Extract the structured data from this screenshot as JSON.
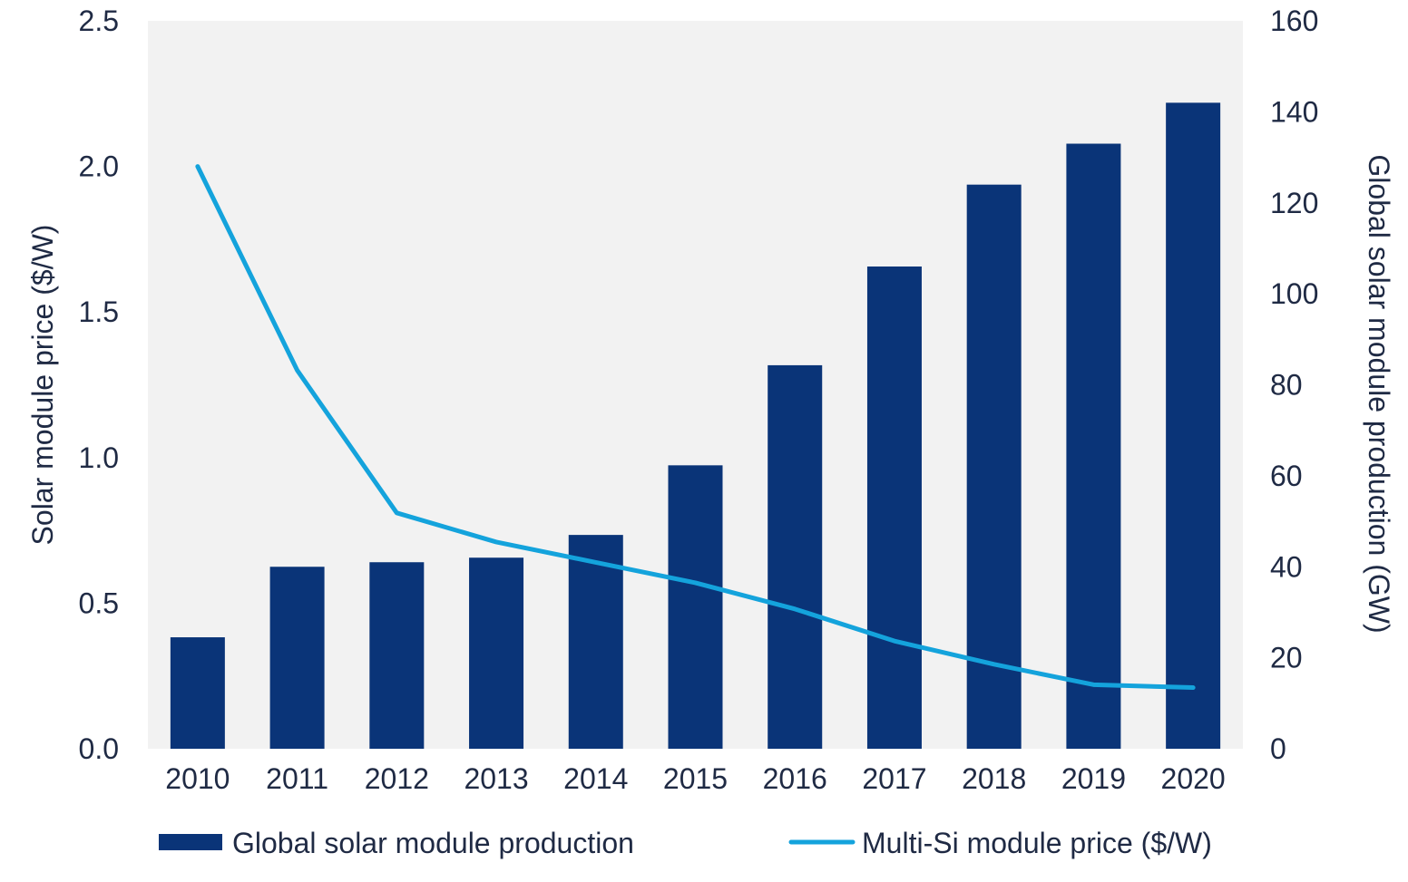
{
  "colors": {
    "plot_background": "#f2f2f2",
    "bar": "#0a3478",
    "line": "#14a3dc",
    "text": "#1f2a44"
  },
  "chart_data": {
    "type": "bar+line",
    "categories": [
      "2010",
      "2011",
      "2012",
      "2013",
      "2014",
      "2015",
      "2016",
      "2017",
      "2018",
      "2019",
      "2020"
    ],
    "series": [
      {
        "name": "Global solar module production",
        "type": "bar",
        "axis": "right",
        "values": [
          24.5,
          40,
          41,
          42,
          47,
          62.3,
          84.3,
          106,
          124,
          133,
          142
        ]
      },
      {
        "name": "Multi-Si module price ($/W)",
        "type": "line",
        "axis": "left",
        "values": [
          2.0,
          1.3,
          0.81,
          0.71,
          0.64,
          0.57,
          0.48,
          0.37,
          0.29,
          0.22,
          0.21
        ]
      }
    ],
    "left_axis": {
      "label": "Solar module price ($/W)",
      "range": [
        0,
        2.5
      ],
      "ticks": [
        "0.0",
        "0.5",
        "1.0",
        "1.5",
        "2.0",
        "2.5"
      ]
    },
    "right_axis": {
      "label": "Global solar module production (GW)",
      "range": [
        0,
        160
      ],
      "ticks": [
        "0",
        "20",
        "40",
        "60",
        "80",
        "100",
        "120",
        "140",
        "160"
      ]
    },
    "grid": false,
    "legend": {
      "position": "bottom",
      "entries": [
        "Global solar module production",
        "Multi-Si module price ($/W)"
      ]
    }
  }
}
